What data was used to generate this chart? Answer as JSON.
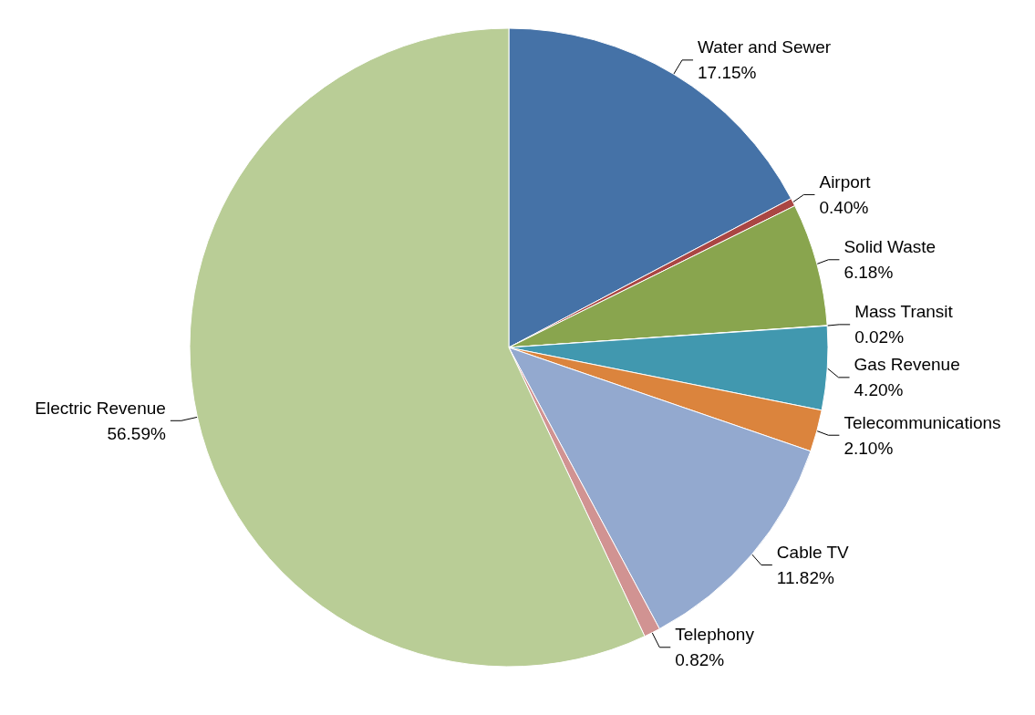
{
  "chart_data": {
    "type": "pie",
    "categories": [
      "Water and Sewer",
      "Airport",
      "Solid Waste",
      "Mass Transit",
      "Gas Revenue",
      "Telecommunications",
      "Cable TV",
      "Telephony",
      "Electric Revenue"
    ],
    "values": [
      17.15,
      0.4,
      6.18,
      0.02,
      4.2,
      2.1,
      11.82,
      0.82,
      56.59
    ],
    "value_labels": [
      "17.15%",
      "0.40%",
      "6.18%",
      "0.02%",
      "4.20%",
      "2.10%",
      "11.82%",
      "0.82%",
      "56.59%"
    ],
    "colors": [
      "#4572a7",
      "#aa4643",
      "#89a54e",
      "#80699b",
      "#4198af",
      "#db843d",
      "#93a9cf",
      "#d19392",
      "#b9cd96"
    ]
  }
}
